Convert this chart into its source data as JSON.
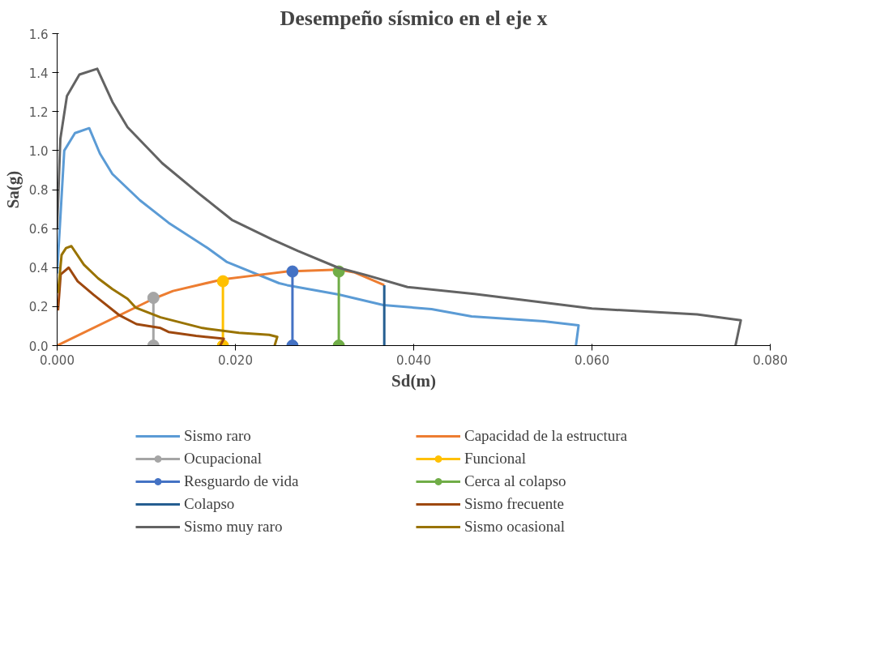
{
  "chart_data": {
    "type": "line",
    "title": "Desempeño sísmico en el eje x",
    "xlabel": "Sd(m)",
    "ylabel": "Sa(g)",
    "xlim": [
      0,
      0.08
    ],
    "ylim": [
      0,
      1.6
    ],
    "xticks": [
      {
        "value": 0,
        "label": "0.000"
      },
      {
        "value": 0.02,
        "label": "0.020"
      },
      {
        "value": 0.04,
        "label": "0.040"
      },
      {
        "value": 0.06,
        "label": "0.060"
      },
      {
        "value": 0.08,
        "label": "0.080"
      }
    ],
    "yticks": [
      {
        "value": 0,
        "label": "0.0"
      },
      {
        "value": 0.2,
        "label": "0.2"
      },
      {
        "value": 0.4,
        "label": "0.4"
      },
      {
        "value": 0.6,
        "label": "0.6"
      },
      {
        "value": 0.8,
        "label": "0.8"
      },
      {
        "value": 1.0,
        "label": "1.0"
      },
      {
        "value": 1.2,
        "label": "1.2"
      },
      {
        "value": 1.4,
        "label": "1.4"
      },
      {
        "value": 1.6,
        "label": "1.6"
      }
    ],
    "grid": false,
    "legend": "bottom",
    "marker": "none",
    "line_style": "solid",
    "series": [
      {
        "name": "Sismo raro",
        "color": "#5b9bd5",
        "x": [
          0,
          0.0008,
          0.002,
          0.0036,
          0.0048,
          0.0062,
          0.0093,
          0.0125,
          0.0169,
          0.019,
          0.0249,
          0.0258,
          0.0316,
          0.0366,
          0.042,
          0.0465,
          0.0546,
          0.0585,
          0.0582
        ],
        "values": [
          0.37,
          1.0,
          1.09,
          1.115,
          0.985,
          0.88,
          0.745,
          0.63,
          0.5,
          0.43,
          0.32,
          0.31,
          0.262,
          0.208,
          0.187,
          0.15,
          0.125,
          0.104,
          0
        ]
      },
      {
        "name": "Capacidad de la estructura",
        "color": "#ed7d31",
        "x": [
          0,
          0.0108,
          0.013,
          0.0186,
          0.0222,
          0.0258,
          0.0316,
          0.0334,
          0.0367
        ],
        "values": [
          0,
          0.24,
          0.28,
          0.34,
          0.36,
          0.38,
          0.39,
          0.375,
          0.31
        ]
      },
      {
        "name": "Ocupacional",
        "color": "#a5a5a5",
        "marker": "circle",
        "x": [
          0.0108,
          0.0108
        ],
        "values": [
          0.245,
          0
        ]
      },
      {
        "name": "Funcional",
        "color": "#ffc000",
        "marker": "circle",
        "x": [
          0.0186,
          0.0186
        ],
        "values": [
          0.33,
          0
        ]
      },
      {
        "name": "Resguardo de vida",
        "color": "#4472c4",
        "marker": "circle",
        "x": [
          0.0264,
          0.0264
        ],
        "values": [
          0.38,
          0
        ]
      },
      {
        "name": "Cerca al colapso",
        "color": "#70ad47",
        "marker": "circle",
        "x": [
          0.0316,
          0.0316
        ],
        "values": [
          0.38,
          0
        ]
      },
      {
        "name": "Colapso",
        "color": "#255e91",
        "x": [
          0.0367,
          0.0367
        ],
        "values": [
          0.31,
          0
        ]
      },
      {
        "name": "Sismo frecuente",
        "color": "#9e480e",
        "x": [
          0.0001,
          0.0004,
          0.0013,
          0.0023,
          0.0041,
          0.007,
          0.0089,
          0.0116,
          0.0125,
          0.0156,
          0.0187,
          0.0183
        ],
        "values": [
          0.18,
          0.365,
          0.4,
          0.33,
          0.26,
          0.155,
          0.11,
          0.09,
          0.07,
          0.05,
          0.035,
          0
        ]
      },
      {
        "name": "Sismo muy raro",
        "color": "#636363",
        "x": [
          0,
          0.00036,
          0.0011,
          0.0025,
          0.0045,
          0.0062,
          0.0079,
          0.0118,
          0.0159,
          0.0196,
          0.0241,
          0.027,
          0.0315,
          0.0348,
          0.0393,
          0.0468,
          0.06,
          0.0718,
          0.0767,
          0.0761
        ],
        "values": [
          0.6,
          1.06,
          1.28,
          1.39,
          1.42,
          1.25,
          1.12,
          0.935,
          0.78,
          0.645,
          0.545,
          0.486,
          0.4,
          0.36,
          0.3,
          0.265,
          0.19,
          0.16,
          0.13,
          0
        ]
      },
      {
        "name": "Sismo ocasional",
        "color": "#997300",
        "x": [
          0.0001,
          0.0005,
          0.001,
          0.0016,
          0.003,
          0.0046,
          0.0062,
          0.0079,
          0.0088,
          0.0116,
          0.0163,
          0.0204,
          0.0238,
          0.0247,
          0.0244
        ],
        "values": [
          0.27,
          0.465,
          0.5,
          0.51,
          0.415,
          0.345,
          0.29,
          0.24,
          0.195,
          0.145,
          0.09,
          0.065,
          0.055,
          0.045,
          0
        ]
      }
    ]
  }
}
